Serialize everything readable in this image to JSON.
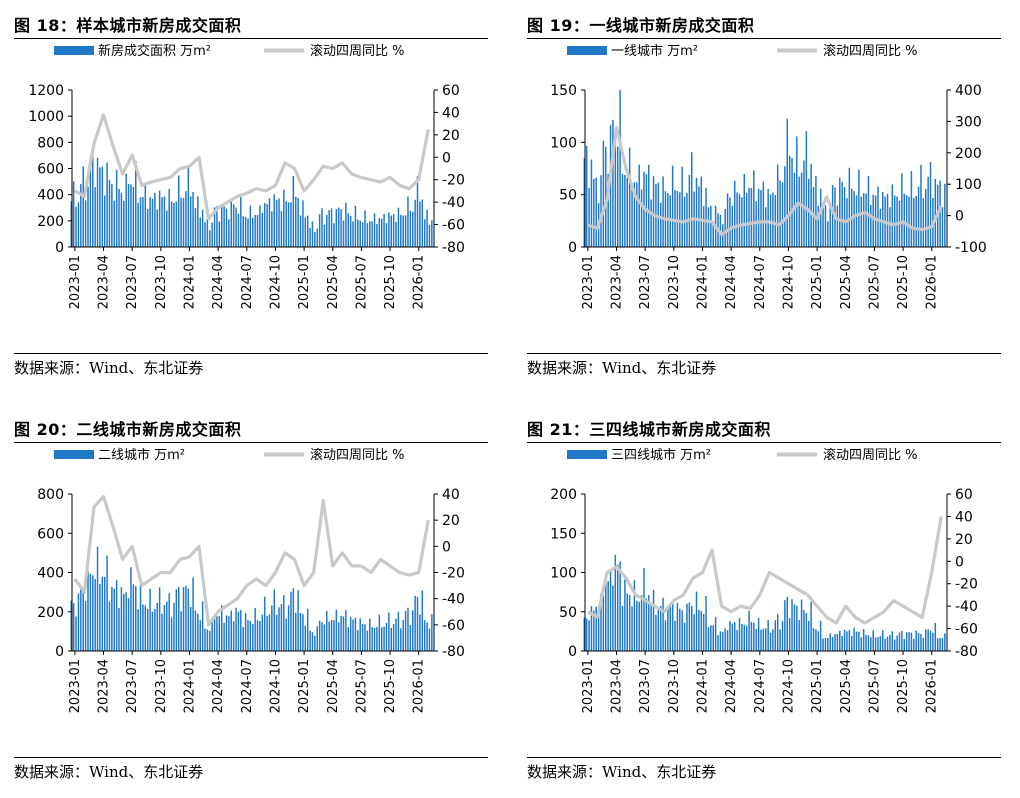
{
  "colors": {
    "bar": "#1f78c8",
    "line": "#c9c9c9"
  },
  "source_text": "数据来源：Wind、东北证券",
  "x_ticks": [
    "2023-01",
    "2023-04",
    "2023-07",
    "2023-10",
    "2024-01",
    "2024-04",
    "2024-07",
    "2024-10",
    "2025-01",
    "2025-04",
    "2025-07",
    "2025-10",
    "2026-01"
  ],
  "panels": [
    {
      "title": "图 18：样本城市新房成交面积",
      "legend_bar": "新房成交面积  万m²",
      "legend_line": "滚动四周同比  %",
      "left_ticks": [
        "0",
        "200",
        "400",
        "600",
        "800",
        "1000",
        "1200"
      ],
      "right_ticks": [
        "-80",
        "-60",
        "-40",
        "-20",
        "0",
        "20",
        "40",
        "60"
      ]
    },
    {
      "title": "图 19：一线城市新房成交面积",
      "legend_bar": "一线城市  万m²",
      "legend_line": "滚动四周同比  %",
      "left_ticks": [
        "0",
        "50",
        "100",
        "150"
      ],
      "right_ticks": [
        "-100",
        "0",
        "100",
        "200",
        "300",
        "400"
      ]
    },
    {
      "title": "图 20：二线城市新房成交面积",
      "legend_bar": "二线城市  万m²",
      "legend_line": "滚动四周同比  %",
      "left_ticks": [
        "0",
        "200",
        "400",
        "600",
        "800"
      ],
      "right_ticks": [
        "-80",
        "-60",
        "-40",
        "-20",
        "0",
        "20",
        "40"
      ]
    },
    {
      "title": "图 21：三四线城市新房成交面积",
      "legend_bar": "三四线城市  万m²",
      "legend_line": "滚动四周同比  %",
      "left_ticks": [
        "0",
        "50",
        "100",
        "150",
        "200"
      ],
      "right_ticks": [
        "-80",
        "-60",
        "-40",
        "-20",
        "0",
        "20",
        "40",
        "60"
      ]
    }
  ],
  "chart_data": [
    {
      "type": "bar+line",
      "title": "图 18：样本城市新房成交面积",
      "x_range": [
        "2023-01",
        "2026-02"
      ],
      "left_axis": {
        "label": "万m²",
        "ylim": [
          0,
          1200
        ]
      },
      "right_axis": {
        "label": "%",
        "ylim": [
          -80,
          60
        ]
      },
      "series": [
        {
          "name": "新房成交面积  万m²",
          "kind": "bar",
          "axis": "left",
          "x": [
            "2023-01",
            "2023-02",
            "2023-03",
            "2023-04",
            "2023-05",
            "2023-06",
            "2023-07",
            "2023-08",
            "2023-09",
            "2023-10",
            "2023-11",
            "2023-12",
            "2024-01",
            "2024-02",
            "2024-03",
            "2024-04",
            "2024-05",
            "2024-06",
            "2024-07",
            "2024-08",
            "2024-09",
            "2024-10",
            "2024-11",
            "2024-12",
            "2025-01",
            "2025-02",
            "2025-03",
            "2025-04",
            "2025-05",
            "2025-06",
            "2025-07",
            "2025-08",
            "2025-09",
            "2025-10",
            "2025-11",
            "2025-12",
            "2026-01",
            "2026-02"
          ],
          "values": [
            380,
            480,
            650,
            560,
            480,
            440,
            520,
            400,
            370,
            380,
            360,
            420,
            470,
            300,
            180,
            280,
            290,
            320,
            250,
            260,
            330,
            360,
            360,
            420,
            270,
            150,
            240,
            260,
            280,
            250,
            220,
            210,
            220,
            240,
            250,
            300,
            410,
            220
          ]
        },
        {
          "name": "滚动四周同比  %",
          "kind": "line",
          "axis": "right",
          "x": [
            "2023-01",
            "2023-02",
            "2023-03",
            "2023-04",
            "2023-05",
            "2023-06",
            "2023-07",
            "2023-08",
            "2023-09",
            "2023-10",
            "2023-11",
            "2023-12",
            "2024-01",
            "2024-02",
            "2024-03",
            "2024-04",
            "2024-05",
            "2024-06",
            "2024-07",
            "2024-08",
            "2024-09",
            "2024-10",
            "2024-11",
            "2024-12",
            "2025-01",
            "2025-02",
            "2025-03",
            "2025-04",
            "2025-05",
            "2025-06",
            "2025-07",
            "2025-08",
            "2025-09",
            "2025-10",
            "2025-11",
            "2025-12",
            "2026-01",
            "2026-02"
          ],
          "values": [
            -30,
            -35,
            12,
            38,
            10,
            -15,
            2,
            -25,
            -22,
            -20,
            -18,
            -10,
            -8,
            0,
            -55,
            -45,
            -40,
            -35,
            -32,
            -28,
            -30,
            -25,
            -5,
            -10,
            -30,
            -20,
            -8,
            -10,
            -5,
            -15,
            -18,
            -20,
            -22,
            -18,
            -25,
            -28,
            -20,
            25
          ]
        }
      ]
    },
    {
      "type": "bar+line",
      "title": "图 19：一线城市新房成交面积",
      "x_range": [
        "2023-01",
        "2026-02"
      ],
      "left_axis": {
        "label": "万m²",
        "ylim": [
          0,
          150
        ]
      },
      "right_axis": {
        "label": "%",
        "ylim": [
          -100,
          400
        ]
      },
      "series": [
        {
          "name": "一线城市  万m²",
          "kind": "bar",
          "axis": "left",
          "x": [
            "2023-01",
            "2023-02",
            "2023-03",
            "2023-04",
            "2023-05",
            "2023-06",
            "2023-07",
            "2023-08",
            "2023-09",
            "2023-10",
            "2023-11",
            "2023-12",
            "2024-01",
            "2024-02",
            "2024-03",
            "2024-04",
            "2024-05",
            "2024-06",
            "2024-07",
            "2024-08",
            "2024-09",
            "2024-10",
            "2024-11",
            "2024-12",
            "2025-01",
            "2025-02",
            "2025-03",
            "2025-04",
            "2025-05",
            "2025-06",
            "2025-07",
            "2025-08",
            "2025-09",
            "2025-10",
            "2025-11",
            "2025-12",
            "2026-01",
            "2026-02"
          ],
          "values": [
            80,
            60,
            95,
            120,
            75,
            65,
            70,
            60,
            55,
            60,
            58,
            70,
            55,
            35,
            30,
            50,
            55,
            60,
            55,
            50,
            65,
            95,
            80,
            85,
            55,
            35,
            55,
            60,
            58,
            55,
            50,
            48,
            50,
            55,
            55,
            60,
            65,
            55
          ]
        },
        {
          "name": "滚动四周同比  %",
          "kind": "line",
          "axis": "right",
          "x": [
            "2023-01",
            "2023-02",
            "2023-03",
            "2023-04",
            "2023-05",
            "2023-06",
            "2023-07",
            "2023-08",
            "2023-09",
            "2023-10",
            "2023-11",
            "2023-12",
            "2024-01",
            "2024-02",
            "2024-03",
            "2024-04",
            "2024-05",
            "2024-06",
            "2024-07",
            "2024-08",
            "2024-09",
            "2024-10",
            "2024-11",
            "2024-12",
            "2025-01",
            "2025-02",
            "2025-03",
            "2025-04",
            "2025-05",
            "2025-06",
            "2025-07",
            "2025-08",
            "2025-09",
            "2025-10",
            "2025-11",
            "2025-12",
            "2026-01",
            "2026-02"
          ],
          "values": [
            -30,
            -40,
            50,
            280,
            150,
            60,
            20,
            0,
            -10,
            -15,
            -20,
            -10,
            -15,
            -20,
            -60,
            -40,
            -30,
            -25,
            -20,
            -20,
            -30,
            0,
            40,
            20,
            -10,
            60,
            -10,
            -20,
            0,
            10,
            -10,
            -20,
            -30,
            -20,
            -40,
            -45,
            -35,
            30
          ]
        }
      ]
    },
    {
      "type": "bar+line",
      "title": "图 20：二线城市新房成交面积",
      "x_range": [
        "2023-01",
        "2026-02"
      ],
      "left_axis": {
        "label": "万m²",
        "ylim": [
          0,
          800
        ]
      },
      "right_axis": {
        "label": "%",
        "ylim": [
          -80,
          40
        ]
      },
      "series": [
        {
          "name": "二线城市  万m²",
          "kind": "bar",
          "axis": "left",
          "x": [
            "2023-01",
            "2023-02",
            "2023-03",
            "2023-04",
            "2023-05",
            "2023-06",
            "2023-07",
            "2023-08",
            "2023-09",
            "2023-10",
            "2023-11",
            "2023-12",
            "2024-01",
            "2024-02",
            "2024-03",
            "2024-04",
            "2024-05",
            "2024-06",
            "2024-07",
            "2024-08",
            "2024-09",
            "2024-10",
            "2024-11",
            "2024-12",
            "2025-01",
            "2025-02",
            "2025-03",
            "2025-04",
            "2025-05",
            "2025-06",
            "2025-07",
            "2025-08",
            "2025-09",
            "2025-10",
            "2025-11",
            "2025-12",
            "2026-01",
            "2026-02"
          ],
          "values": [
            240,
            320,
            420,
            400,
            320,
            290,
            350,
            260,
            240,
            250,
            240,
            290,
            310,
            200,
            120,
            190,
            180,
            200,
            160,
            170,
            210,
            240,
            230,
            280,
            180,
            100,
            160,
            170,
            180,
            160,
            140,
            130,
            140,
            150,
            160,
            190,
            260,
            150
          ]
        },
        {
          "name": "滚动四周同比  %",
          "kind": "line",
          "axis": "right",
          "x": [
            "2023-01",
            "2023-02",
            "2023-03",
            "2023-04",
            "2023-05",
            "2023-06",
            "2023-07",
            "2023-08",
            "2023-09",
            "2023-10",
            "2023-11",
            "2023-12",
            "2024-01",
            "2024-02",
            "2024-03",
            "2024-04",
            "2024-05",
            "2024-06",
            "2024-07",
            "2024-08",
            "2024-09",
            "2024-10",
            "2024-11",
            "2024-12",
            "2025-01",
            "2025-02",
            "2025-03",
            "2025-04",
            "2025-05",
            "2025-06",
            "2025-07",
            "2025-08",
            "2025-09",
            "2025-10",
            "2025-11",
            "2025-12",
            "2026-01",
            "2026-02"
          ],
          "values": [
            -25,
            -35,
            30,
            38,
            15,
            -10,
            0,
            -30,
            -25,
            -20,
            -20,
            -10,
            -8,
            0,
            -60,
            -50,
            -45,
            -40,
            -30,
            -25,
            -30,
            -20,
            -5,
            -10,
            -30,
            -20,
            35,
            -15,
            -5,
            -15,
            -15,
            -20,
            -10,
            -15,
            -20,
            -22,
            -20,
            20
          ]
        }
      ]
    },
    {
      "type": "bar+line",
      "title": "图 21：三四线城市新房成交面积",
      "x_range": [
        "2023-01",
        "2026-02"
      ],
      "left_axis": {
        "label": "万m²",
        "ylim": [
          0,
          200
        ]
      },
      "right_axis": {
        "label": "%",
        "ylim": [
          -80,
          60
        ]
      },
      "series": [
        {
          "name": "三四线城市  万m²",
          "kind": "bar",
          "axis": "left",
          "x": [
            "2023-01",
            "2023-02",
            "2023-03",
            "2023-04",
            "2023-05",
            "2023-06",
            "2023-07",
            "2023-08",
            "2023-09",
            "2023-10",
            "2023-11",
            "2023-12",
            "2024-01",
            "2024-02",
            "2024-03",
            "2024-04",
            "2024-05",
            "2024-06",
            "2024-07",
            "2024-08",
            "2024-09",
            "2024-10",
            "2024-11",
            "2024-12",
            "2025-01",
            "2025-02",
            "2025-03",
            "2025-04",
            "2025-05",
            "2025-06",
            "2025-07",
            "2025-08",
            "2025-09",
            "2025-10",
            "2025-11",
            "2025-12",
            "2026-01",
            "2026-02"
          ],
          "values": [
            45,
            60,
            90,
            110,
            75,
            70,
            80,
            60,
            55,
            55,
            50,
            60,
            55,
            35,
            25,
            35,
            35,
            40,
            32,
            30,
            38,
            60,
            55,
            50,
            30,
            18,
            22,
            25,
            25,
            22,
            20,
            20,
            20,
            22,
            22,
            22,
            28,
            18
          ]
        },
        {
          "name": "滚动四周同比  %",
          "kind": "line",
          "axis": "right",
          "x": [
            "2023-01",
            "2023-02",
            "2023-03",
            "2023-04",
            "2023-05",
            "2023-06",
            "2023-07",
            "2023-08",
            "2023-09",
            "2023-10",
            "2023-11",
            "2023-12",
            "2024-01",
            "2024-02",
            "2024-03",
            "2024-04",
            "2024-05",
            "2024-06",
            "2024-07",
            "2024-08",
            "2024-09",
            "2024-10",
            "2024-11",
            "2024-12",
            "2025-01",
            "2025-02",
            "2025-03",
            "2025-04",
            "2025-05",
            "2025-06",
            "2025-07",
            "2025-08",
            "2025-09",
            "2025-10",
            "2025-11",
            "2025-12",
            "2026-01",
            "2026-02"
          ],
          "values": [
            -45,
            -50,
            -10,
            -5,
            -15,
            -30,
            -35,
            -40,
            -45,
            -35,
            -30,
            -15,
            -10,
            10,
            -40,
            -45,
            -40,
            -42,
            -30,
            -10,
            -15,
            -20,
            -25,
            -30,
            -40,
            -50,
            -55,
            -40,
            -50,
            -55,
            -50,
            -45,
            -35,
            -40,
            -45,
            -50,
            -10,
            40
          ]
        }
      ]
    }
  ]
}
